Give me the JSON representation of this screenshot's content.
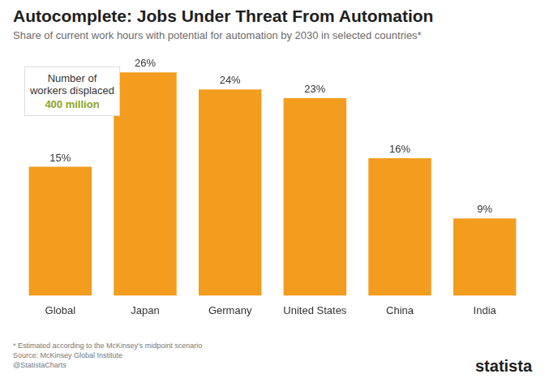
{
  "chart_data": {
    "type": "bar",
    "title": "Autocomplete: Jobs Under Threat From Automation",
    "subtitle": "Share of current work hours with potential for automation by 2030 in selected countries*",
    "categories": [
      "Global",
      "Japan",
      "Germany",
      "United States",
      "China",
      "India"
    ],
    "values": [
      15,
      26,
      24,
      23,
      16,
      9
    ],
    "value_labels": [
      "15%",
      "26%",
      "24%",
      "23%",
      "16%",
      "9%"
    ],
    "data_labels": true,
    "color": "#f39c1e",
    "ylim": [
      0,
      28
    ],
    "grid": false,
    "tick_labels": "x",
    "annotation": {
      "label": "Number of workers displaced",
      "value": "400 million"
    },
    "notes": [
      "* Estimated according to the McKinsey's midpoint scenario",
      "Source: McKinsey Global Institute",
      "@StatistaCharts"
    ],
    "source_brand": "statista"
  }
}
